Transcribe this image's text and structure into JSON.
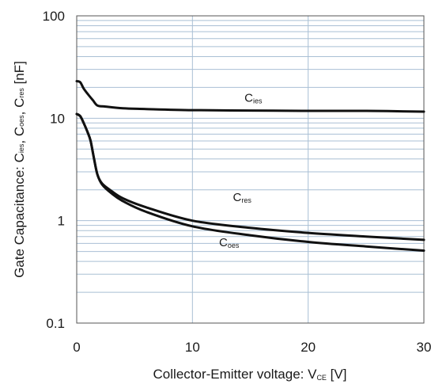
{
  "chart_data": {
    "type": "line",
    "xlabel": "Collector-Emitter voltage: V",
    "xlabel_sub": "CE",
    "xlabel_unit": " [V]",
    "ylabel_parts": [
      {
        "t": "Gate Capacitance: C"
      },
      {
        "t": "ies",
        "sub": true
      },
      {
        "t": ", C"
      },
      {
        "t": "oes",
        "sub": true
      },
      {
        "t": ", C"
      },
      {
        "t": "res",
        "sub": true
      },
      {
        "t": " [nF]"
      }
    ],
    "xlim": [
      0,
      30
    ],
    "ylim": [
      0.1,
      100
    ],
    "yscale": "log",
    "x_ticks": [
      "0",
      "10",
      "20",
      "30"
    ],
    "y_ticks": [
      "0.1",
      "1",
      "10",
      "100"
    ],
    "grid": "x major lines at 10 and 20; y log minor lines at 2–9 of each decade",
    "annotations": [
      {
        "base": "C",
        "sub": "ies",
        "x": 14.5,
        "y": 14.5
      },
      {
        "base": "C",
        "sub": "res",
        "x": 13.5,
        "y": 1.55
      },
      {
        "base": "C",
        "sub": "oes",
        "x": 12.3,
        "y": 0.56
      }
    ],
    "series": [
      {
        "key": "cies",
        "x": [
          0,
          0.3,
          0.6,
          1.0,
          1.4,
          1.8,
          2.5,
          4,
          6,
          10,
          15,
          20,
          25,
          30
        ],
        "y": [
          23,
          22.5,
          19.5,
          17,
          15,
          13.3,
          13.0,
          12.5,
          12.3,
          12.0,
          11.9,
          11.8,
          11.8,
          11.6
        ]
      },
      {
        "key": "cres",
        "x": [
          0,
          0.3,
          0.6,
          0.9,
          1.2,
          1.5,
          1.8,
          2.2,
          3,
          4,
          6,
          10,
          15,
          20,
          25,
          30
        ],
        "y": [
          11,
          10.5,
          9,
          7.5,
          6,
          4,
          2.8,
          2.3,
          1.95,
          1.65,
          1.35,
          1.0,
          0.85,
          0.76,
          0.7,
          0.65
        ]
      },
      {
        "key": "coes",
        "x": [
          0,
          0.3,
          0.6,
          0.9,
          1.2,
          1.5,
          1.8,
          2.2,
          3,
          4,
          6,
          10,
          15,
          20,
          25,
          30
        ],
        "y": [
          11,
          10.5,
          9,
          7.5,
          6,
          4,
          2.8,
          2.25,
          1.85,
          1.55,
          1.22,
          0.88,
          0.72,
          0.62,
          0.56,
          0.51
        ]
      }
    ]
  },
  "colors": {
    "curve": "#111111",
    "grid": "#a9bfd4",
    "frame": "#555555"
  }
}
